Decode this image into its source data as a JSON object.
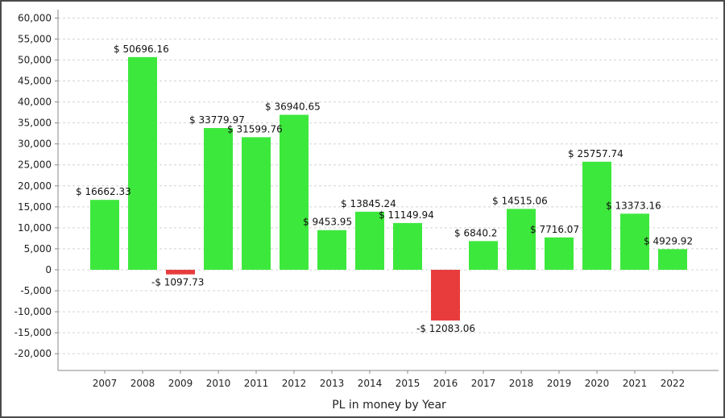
{
  "chart_data": {
    "type": "bar",
    "xlabel": "PL in money by Year",
    "ylabel": "",
    "ylim": [
      -24000,
      62000
    ],
    "yticks": [
      -20000,
      -15000,
      -10000,
      -5000,
      0,
      5000,
      10000,
      15000,
      20000,
      25000,
      30000,
      35000,
      40000,
      45000,
      50000,
      55000,
      60000
    ],
    "ytick_labels": [
      "-20,000",
      "-15,000",
      "-10,000",
      "-5,000",
      "0",
      "5,000",
      "10,000",
      "15,000",
      "20,000",
      "25,000",
      "30,000",
      "35,000",
      "40,000",
      "45,000",
      "50,000",
      "55,000",
      "60,000"
    ],
    "grid": true,
    "categories": [
      "2007",
      "2008",
      "2009",
      "2010",
      "2011",
      "2012",
      "2013",
      "2014",
      "2015",
      "2016",
      "2017",
      "2018",
      "2019",
      "2020",
      "2021",
      "2022"
    ],
    "values": [
      16662.33,
      50696.16,
      -1097.73,
      33779.97,
      31599.76,
      36940.65,
      9453.95,
      13845.24,
      11149.94,
      -12083.06,
      6840.2,
      14515.06,
      7716.07,
      25757.74,
      13373.16,
      4929.92
    ],
    "data_labels": [
      "$ 16662.33",
      "$ 50696.16",
      "-$ 1097.73",
      "$ 33779.97",
      "$ 31599.76",
      "$ 36940.65",
      "$ 9453.95",
      "$ 13845.24",
      "$ 11149.94",
      "-$ 12083.06",
      "$ 6840.2",
      "$ 14515.06",
      "$ 7716.07",
      "$ 25757.74",
      "$ 13373.16",
      "$ 4929.92"
    ],
    "colors": {
      "positive": "#3de83d",
      "negative": "#e83c3c",
      "grid": "#d4d4d4",
      "axis": "#888888"
    }
  }
}
